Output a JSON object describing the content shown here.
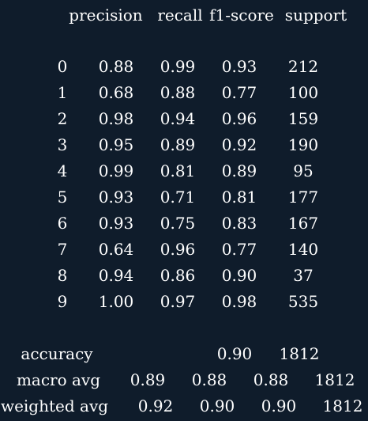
{
  "report": {
    "headers": [
      "precision",
      "recall",
      "f1-score",
      "support"
    ],
    "rows": [
      {
        "label": "0",
        "precision": "0.88",
        "recall": "0.99",
        "f1": "0.93",
        "support": "212"
      },
      {
        "label": "1",
        "precision": "0.68",
        "recall": "0.88",
        "f1": "0.77",
        "support": "100"
      },
      {
        "label": "2",
        "precision": "0.98",
        "recall": "0.94",
        "f1": "0.96",
        "support": "159"
      },
      {
        "label": "3",
        "precision": "0.95",
        "recall": "0.89",
        "f1": "0.92",
        "support": "190"
      },
      {
        "label": "4",
        "precision": "0.99",
        "recall": "0.81",
        "f1": "0.89",
        "support": "95"
      },
      {
        "label": "5",
        "precision": "0.93",
        "recall": "0.71",
        "f1": "0.81",
        "support": "177"
      },
      {
        "label": "6",
        "precision": "0.93",
        "recall": "0.75",
        "f1": "0.83",
        "support": "167"
      },
      {
        "label": "7",
        "precision": "0.64",
        "recall": "0.96",
        "f1": "0.77",
        "support": "140"
      },
      {
        "label": "8",
        "precision": "0.94",
        "recall": "0.86",
        "f1": "0.90",
        "support": "37"
      },
      {
        "label": "9",
        "precision": "1.00",
        "recall": "0.97",
        "f1": "0.98",
        "support": "535"
      }
    ],
    "accuracy": {
      "label": "accuracy",
      "value": "0.90",
      "support": "1812"
    },
    "macro": {
      "label": "macro avg",
      "precision": "0.89",
      "recall": "0.88",
      "f1": "0.88",
      "support": "1812"
    },
    "weighted": {
      "label": "weighted avg",
      "precision": "0.92",
      "recall": "0.90",
      "f1": "0.90",
      "support": "1812"
    }
  },
  "colors": {
    "background": "#0f1c2b",
    "text": "#ffffff"
  }
}
